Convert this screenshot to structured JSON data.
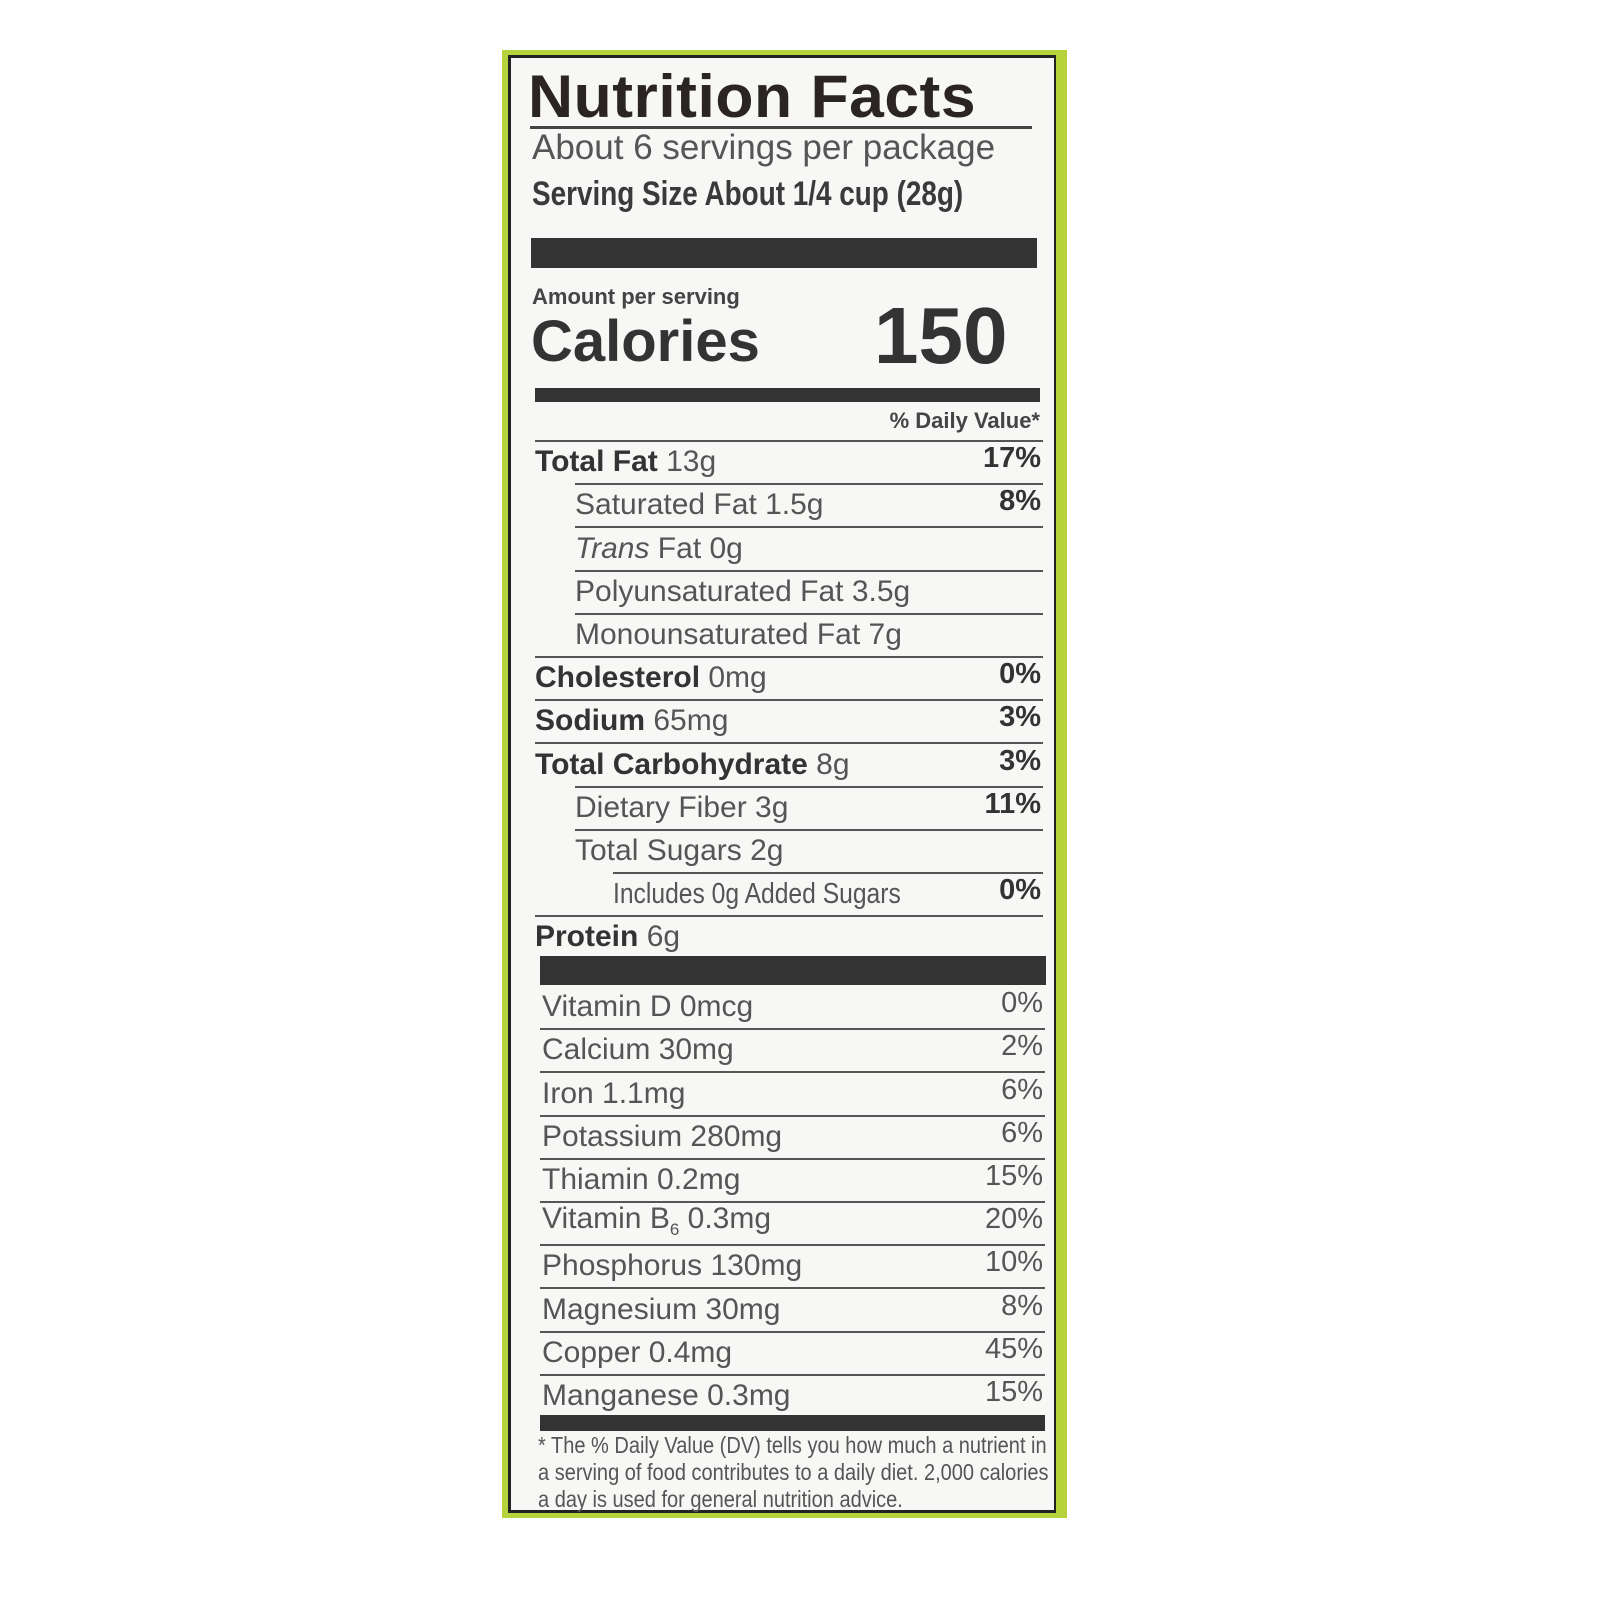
{
  "background_color": "#b6d33c",
  "title": "Nutrition Facts",
  "servings": "About 6 servings per package",
  "serving_size": "Serving Size About 1/4 cup (28g)",
  "amount_per_serving": "Amount per serving",
  "calories_label": "Calories",
  "calories_value": "150",
  "daily_value_header": "% Daily Value*",
  "nutrients": [
    {
      "name": "Total Fat",
      "amount": "13g",
      "dv": "17%",
      "level": 0
    },
    {
      "name": "Saturated Fat",
      "amount": "1.5g",
      "dv": "8%",
      "level": 1
    },
    {
      "name": "Trans",
      "name_suffix": "Fat",
      "amount": "0g",
      "dv": "",
      "level": 1,
      "italic": true
    },
    {
      "name": "Polyunsaturated Fat",
      "amount": "3.5g",
      "dv": "",
      "level": 1
    },
    {
      "name": "Monounsaturated Fat",
      "amount": "7g",
      "dv": "",
      "level": 1
    },
    {
      "name": "Cholesterol",
      "amount": "0mg",
      "dv": "0%",
      "level": 0
    },
    {
      "name": "Sodium",
      "amount": "65mg",
      "dv": "3%",
      "level": 0
    },
    {
      "name": "Total Carbohydrate",
      "amount": "8g",
      "dv": "3%",
      "level": 0
    },
    {
      "name": "Dietary Fiber",
      "amount": "3g",
      "dv": "11%",
      "level": 1
    },
    {
      "name": "Total Sugars",
      "amount": "2g",
      "dv": "",
      "level": 1
    },
    {
      "name": "Includes 0g Added Sugars",
      "amount": "",
      "dv": "0%",
      "level": 2
    },
    {
      "name": "Protein",
      "amount": "6g",
      "dv": "",
      "level": 0
    }
  ],
  "vitamins": [
    {
      "name": "Vitamin D 0mcg",
      "dv": "0%"
    },
    {
      "name": "Calcium 30mg",
      "dv": "2%"
    },
    {
      "name": "Iron 1.1mg",
      "dv": "6%"
    },
    {
      "name": "Potassium 280mg",
      "dv": "6%"
    },
    {
      "name": "Thiamin 0.2mg",
      "dv": "15%"
    },
    {
      "name": "Vitamin B",
      "sub": "6",
      "name_rest": " 0.3mg",
      "dv": "20%"
    },
    {
      "name": "Phosphorus 130mg",
      "dv": "10%"
    },
    {
      "name": "Magnesium 30mg",
      "dv": "8%"
    },
    {
      "name": "Copper 0.4mg",
      "dv": "45%"
    },
    {
      "name": "Manganese 0.3mg",
      "dv": "15%"
    }
  ],
  "footnote": "* The % Daily Value (DV) tells you how much a nutrient in a serving of food contributes to a daily diet. 2,000 calories a day is used for general nutrition advice."
}
